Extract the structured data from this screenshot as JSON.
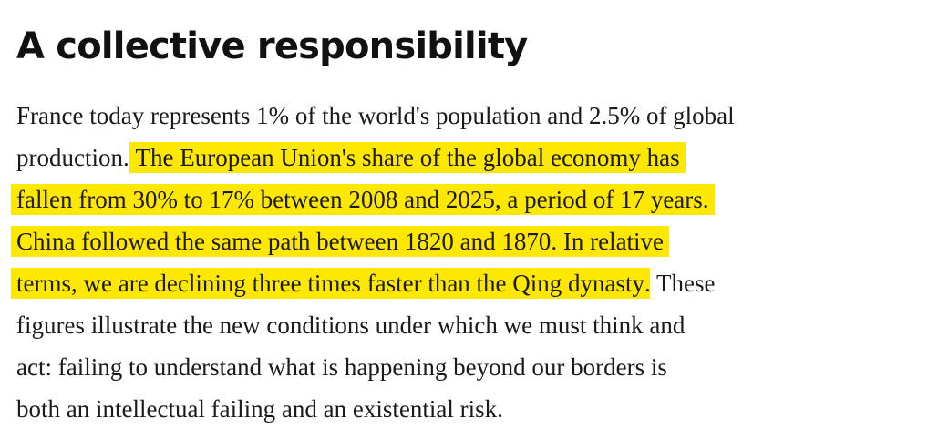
{
  "heading": "A collective responsibility",
  "paragraph": {
    "lines": [
      [
        {
          "text": "France today represents 1% of the world's population and 2.5% of global",
          "highlight": false
        }
      ],
      [
        {
          "text": "production. ",
          "highlight": false
        },
        {
          "text": "The European Union's share of the global economy has",
          "highlight": true
        }
      ],
      [
        {
          "text": "fallen from 30% to 17% between 2008 and 2025, a period of 17 years.",
          "highlight": true
        }
      ],
      [
        {
          "text": "China followed the same path between 1820 and 1870. In relative",
          "highlight": true
        }
      ],
      [
        {
          "text": "terms, we are declining three times faster than the Qing dynasty",
          "highlight": true
        },
        {
          "text": ". These",
          "highlight": false
        }
      ],
      [
        {
          "text": "figures illustrate the new conditions under which we must think and",
          "highlight": false
        }
      ],
      [
        {
          "text": "act: failing to understand what is happening beyond our borders is",
          "highlight": false
        }
      ],
      [
        {
          "text": "both an intellectual failing and an existential risk.",
          "highlight": false
        }
      ]
    ]
  }
}
